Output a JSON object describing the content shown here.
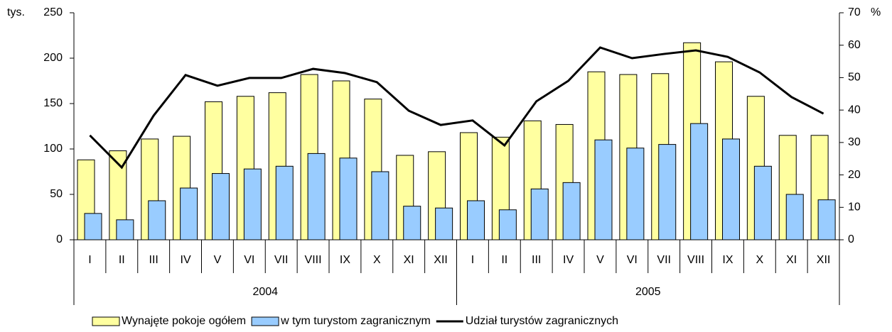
{
  "chart_data": {
    "type": "bar",
    "categories": [
      "I",
      "II",
      "III",
      "IV",
      "V",
      "VI",
      "VII",
      "VIII",
      "IX",
      "X",
      "XI",
      "XII",
      "I",
      "II",
      "III",
      "IV",
      "V",
      "VI",
      "VII",
      "VIII",
      "IX",
      "X",
      "XI",
      "XII"
    ],
    "x_groups": [
      "2004",
      "2005"
    ],
    "ylabel": "tys.",
    "y2label": "%",
    "ylim": [
      0,
      250
    ],
    "yticks": [
      0,
      50,
      100,
      150,
      200,
      250
    ],
    "y2lim": [
      0,
      70
    ],
    "y2ticks": [
      0,
      10,
      20,
      30,
      40,
      50,
      60,
      70
    ],
    "series": [
      {
        "name": "Wynajęte pokoje ogółem",
        "type": "bar",
        "color": "#ffffa0",
        "values": [
          88,
          98,
          111,
          114,
          152,
          158,
          162,
          182,
          175,
          155,
          93,
          97,
          118,
          113,
          131,
          127,
          185,
          182,
          183,
          217,
          196,
          158,
          115,
          115
        ]
      },
      {
        "name": "w tym turystom zagranicznym",
        "type": "bar",
        "color": "#99ccff",
        "values": [
          29,
          22,
          43,
          57,
          73,
          78,
          81,
          95,
          90,
          75,
          37,
          35,
          43,
          33,
          56,
          63,
          110,
          101,
          105,
          128,
          111,
          81,
          50,
          44
        ]
      },
      {
        "name": "Udział turystów zagranicznych",
        "type": "line",
        "axis": "y2",
        "color": "#000000",
        "values": [
          32.2,
          22.3,
          38.3,
          50.8,
          47.5,
          49.9,
          49.9,
          52.7,
          51.4,
          48.6,
          39.8,
          35.4,
          36.8,
          29.1,
          42.7,
          49,
          59.3,
          56,
          57.3,
          58.4,
          56.4,
          51.6,
          44,
          38.9
        ]
      }
    ]
  }
}
